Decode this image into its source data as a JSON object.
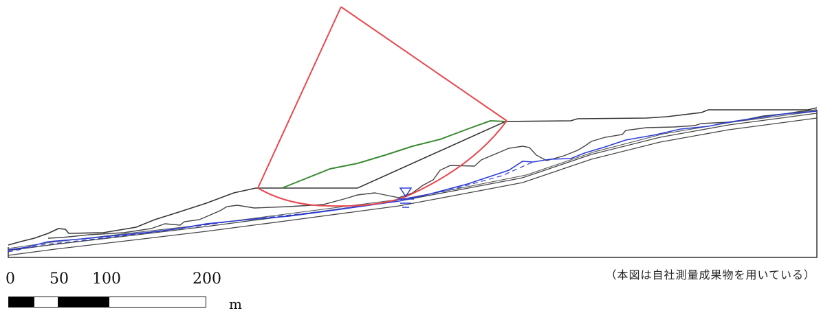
{
  "note": "（本図は自社測量成果物を用いている）",
  "scale": {
    "ticks": [
      "0",
      "50",
      "100",
      "200"
    ],
    "unit": "m"
  },
  "colors": {
    "ground": "#333333",
    "water_table": "#2b3bd6",
    "slip_circle": "#e8474d",
    "fill_slope": "#3a8a32"
  },
  "icons": {
    "water_level": "water-level-triangle-icon"
  }
}
